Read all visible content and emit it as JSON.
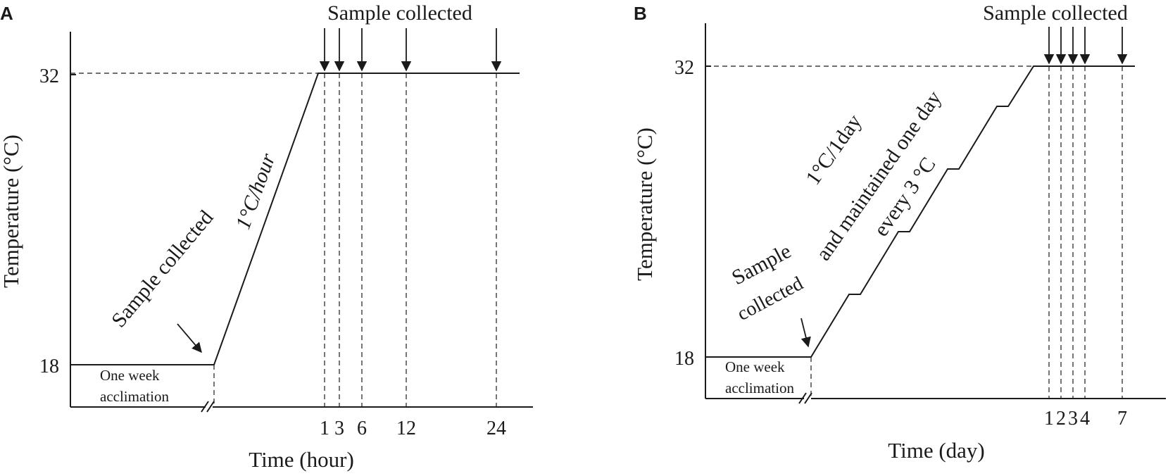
{
  "panel_a": {
    "letter": "A",
    "ylabel": "Temperature (°C)",
    "xlabel": "Time (hour)",
    "y_ticks": [
      "32",
      "18"
    ],
    "x_ticks": [
      "1",
      "3",
      "6",
      "12",
      "24"
    ],
    "top_caption": "Sample collected",
    "ramp_sample_text": "Sample collected",
    "rate_text": "1°C/hour",
    "acclimation_line1": "One week",
    "acclimation_line2": "acclimation"
  },
  "panel_b": {
    "letter": "B",
    "ylabel": "Temperature (°C)",
    "xlabel": "Time (day)",
    "y_ticks": [
      "32",
      "18"
    ],
    "x_ticks": [
      "1",
      "2",
      "3",
      "4",
      "7"
    ],
    "top_caption": "Sample collected",
    "sample_line1": "Sample",
    "sample_line2": "collected",
    "rate_text": "1°C/1day",
    "maintain_text": "and maintained one day",
    "every_text": "every 3 °C",
    "acclimation_line1": "One week",
    "acclimation_line2": "acclimation"
  }
}
